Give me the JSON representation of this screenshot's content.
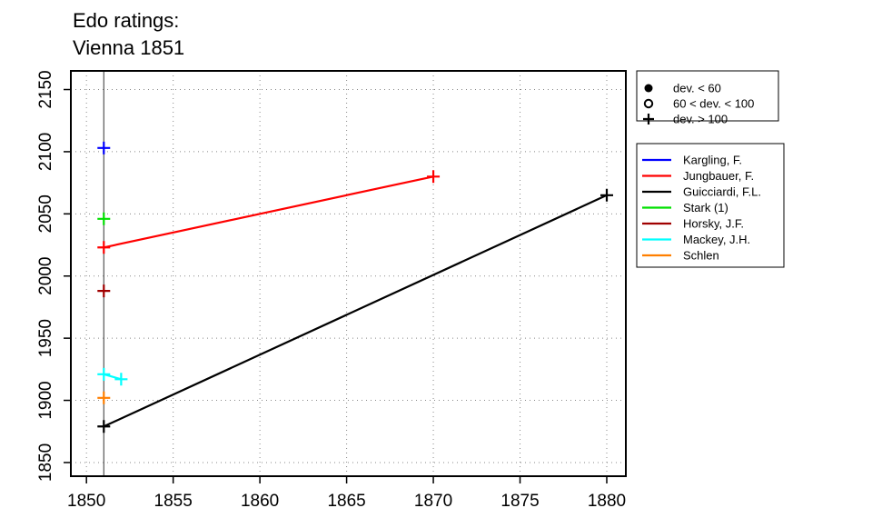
{
  "chart_data": {
    "type": "line",
    "title": "Edo ratings:",
    "subtitle": "Vienna 1851",
    "xlabel": "",
    "ylabel": "",
    "xlim": [
      1849.1,
      1881.1
    ],
    "ylim": [
      1839,
      2165
    ],
    "x_ticks": [
      1850,
      1855,
      1860,
      1865,
      1870,
      1875,
      1880
    ],
    "y_ticks": [
      1850,
      1900,
      1950,
      2000,
      2050,
      2100,
      2150
    ],
    "grid": true,
    "grid_style": "dotted",
    "vertical_reference_line": 1851,
    "legend_placement": "right, outside plot",
    "symbol_legend": [
      {
        "symbol": "filled-circle",
        "label": "dev. < 60"
      },
      {
        "symbol": "open-circle",
        "label": "60 < dev. < 100"
      },
      {
        "symbol": "plus",
        "label": "dev. > 100"
      }
    ],
    "series": [
      {
        "name": "Kargling, F.",
        "color": "#0000ff",
        "points": [
          [
            1851,
            2103
          ]
        ]
      },
      {
        "name": "Jungbauer, F.",
        "color": "#ff0000",
        "points": [
          [
            1851,
            2023
          ],
          [
            1870,
            2080
          ]
        ]
      },
      {
        "name": "Guicciardi, F.L.",
        "color": "#000000",
        "points": [
          [
            1851,
            1879
          ],
          [
            1880,
            2065
          ]
        ]
      },
      {
        "name": "Stark (1)",
        "color": "#00e000",
        "points": [
          [
            1851,
            2046
          ]
        ]
      },
      {
        "name": "Horsky, J.F.",
        "color": "#a00000",
        "points": [
          [
            1851,
            1988
          ]
        ]
      },
      {
        "name": "Mackey, J.H.",
        "color": "#00ffff",
        "points": [
          [
            1851,
            1921
          ],
          [
            1852,
            1917
          ]
        ]
      },
      {
        "name": "Schlen",
        "color": "#ff7f00",
        "points": [
          [
            1851,
            1902
          ]
        ]
      }
    ]
  }
}
